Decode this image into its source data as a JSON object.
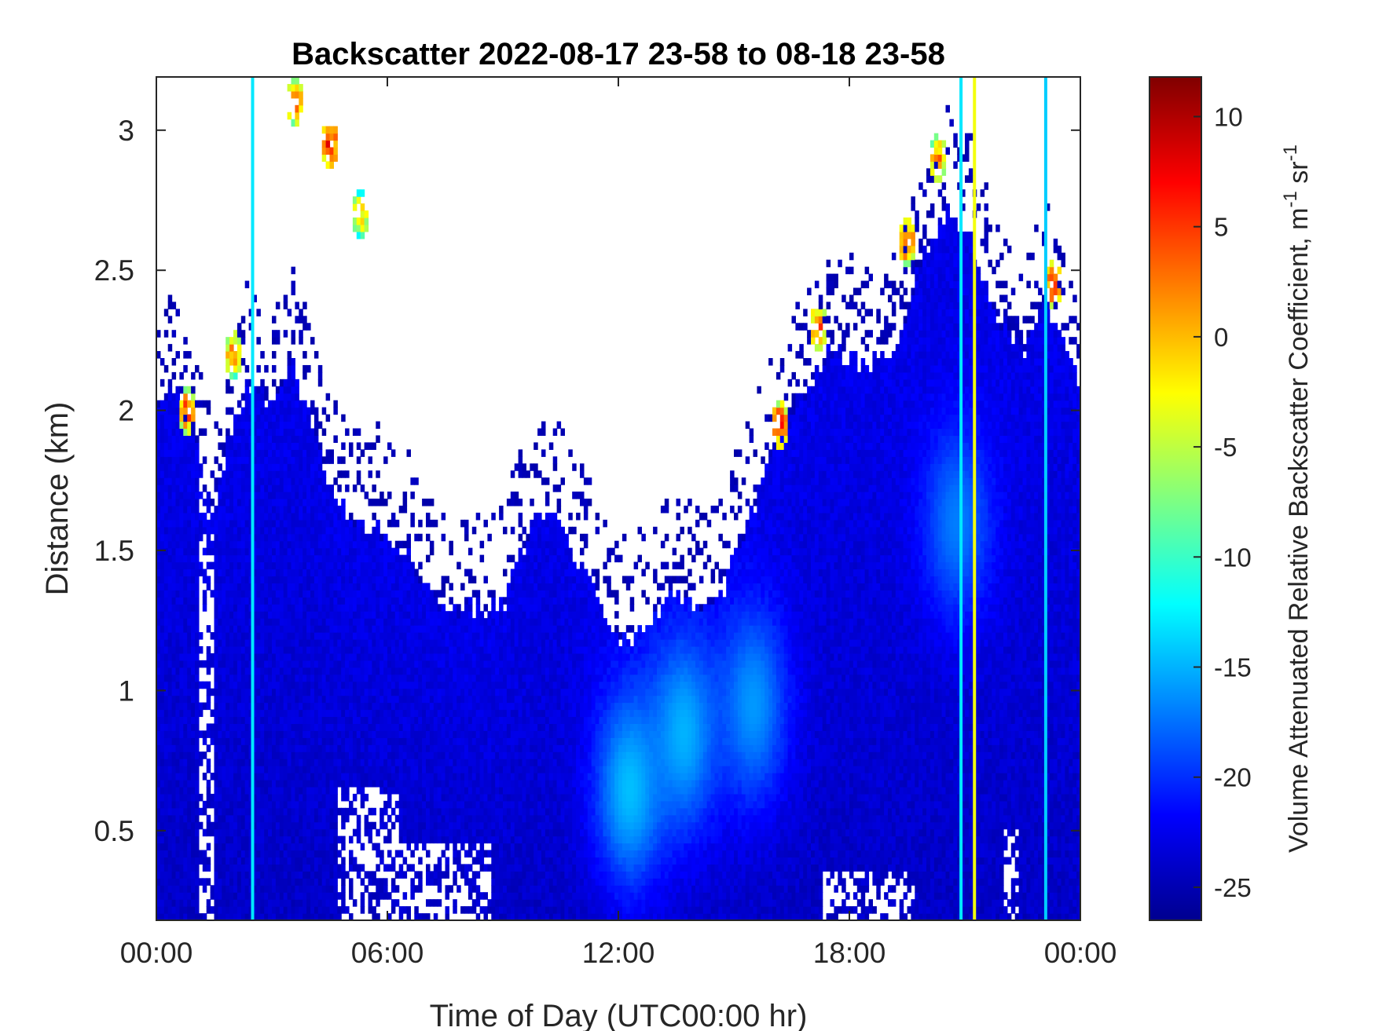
{
  "chart_data": {
    "type": "heatmap",
    "title": "Backscatter 2022-08-17 23-58 to 08-18 23-58",
    "xlabel": "Time of Day (UTC00:00 hr)",
    "ylabel": "Distance (km)",
    "xlim": [
      0,
      24
    ],
    "ylim": [
      0.18,
      3.19
    ],
    "x_ticks": [
      {
        "value": 0,
        "label": "00:00"
      },
      {
        "value": 6,
        "label": "06:00"
      },
      {
        "value": 12,
        "label": "12:00"
      },
      {
        "value": 18,
        "label": "18:00"
      },
      {
        "value": 24,
        "label": "00:00"
      }
    ],
    "y_ticks": [
      {
        "value": 0.5,
        "label": "0.5"
      },
      {
        "value": 1,
        "label": "1"
      },
      {
        "value": 1.5,
        "label": "1.5"
      },
      {
        "value": 2,
        "label": "2"
      },
      {
        "value": 2.5,
        "label": "2.5"
      },
      {
        "value": 3,
        "label": "3"
      }
    ],
    "colorbar": {
      "label": "Volume Attenuated Relative Backscatter Coefficient, m-1 sr-1",
      "label_text": "Volume Attenuated Relative Backscatter Coefficient, m",
      "label_sup1": "-1",
      "label_mid": " sr",
      "label_sup2": "-1",
      "range": [
        -26.5,
        11.8
      ],
      "colormap": "jet",
      "ticks": [
        {
          "value": 10,
          "label": "10"
        },
        {
          "value": 5,
          "label": "5"
        },
        {
          "value": 0,
          "label": "0"
        },
        {
          "value": -5,
          "label": "-5"
        },
        {
          "value": -10,
          "label": "-10"
        },
        {
          "value": -15,
          "label": "-15"
        },
        {
          "value": -20,
          "label": "-20"
        },
        {
          "value": -25,
          "label": "-25"
        }
      ]
    },
    "layer_top_km": [
      {
        "t": 0.0,
        "h": 2.0
      },
      {
        "t": 0.5,
        "h": 2.1
      },
      {
        "t": 1.0,
        "h": 1.9
      },
      {
        "t": 1.5,
        "h": 1.6
      },
      {
        "t": 2.0,
        "h": 2.0
      },
      {
        "t": 2.5,
        "h": 2.1
      },
      {
        "t": 3.0,
        "h": 2.0
      },
      {
        "t": 3.5,
        "h": 2.2
      },
      {
        "t": 4.0,
        "h": 1.95
      },
      {
        "t": 4.5,
        "h": 1.75
      },
      {
        "t": 5.0,
        "h": 1.6
      },
      {
        "t": 5.5,
        "h": 1.6
      },
      {
        "t": 6.0,
        "h": 1.55
      },
      {
        "t": 6.5,
        "h": 1.5
      },
      {
        "t": 7.0,
        "h": 1.35
      },
      {
        "t": 7.5,
        "h": 1.3
      },
      {
        "t": 8.0,
        "h": 1.3
      },
      {
        "t": 8.5,
        "h": 1.3
      },
      {
        "t": 9.0,
        "h": 1.3
      },
      {
        "t": 9.5,
        "h": 1.5
      },
      {
        "t": 10.0,
        "h": 1.65
      },
      {
        "t": 10.5,
        "h": 1.6
      },
      {
        "t": 11.0,
        "h": 1.45
      },
      {
        "t": 11.5,
        "h": 1.3
      },
      {
        "t": 12.0,
        "h": 1.2
      },
      {
        "t": 12.5,
        "h": 1.2
      },
      {
        "t": 13.0,
        "h": 1.3
      },
      {
        "t": 13.5,
        "h": 1.35
      },
      {
        "t": 14.0,
        "h": 1.3
      },
      {
        "t": 14.5,
        "h": 1.3
      },
      {
        "t": 15.0,
        "h": 1.45
      },
      {
        "t": 15.5,
        "h": 1.65
      },
      {
        "t": 16.0,
        "h": 1.85
      },
      {
        "t": 16.5,
        "h": 2.0
      },
      {
        "t": 17.0,
        "h": 2.1
      },
      {
        "t": 17.5,
        "h": 2.2
      },
      {
        "t": 18.0,
        "h": 2.2
      },
      {
        "t": 18.5,
        "h": 2.15
      },
      {
        "t": 19.0,
        "h": 2.2
      },
      {
        "t": 19.5,
        "h": 2.35
      },
      {
        "t": 20.0,
        "h": 2.6
      },
      {
        "t": 20.5,
        "h": 2.7
      },
      {
        "t": 21.0,
        "h": 2.65
      },
      {
        "t": 21.5,
        "h": 2.45
      },
      {
        "t": 22.0,
        "h": 2.3
      },
      {
        "t": 22.5,
        "h": 2.2
      },
      {
        "t": 23.0,
        "h": 2.4
      },
      {
        "t": 23.5,
        "h": 2.3
      },
      {
        "t": 24.0,
        "h": 2.1
      }
    ],
    "layer_bottom_gaps_km": [
      {
        "t": 1.3,
        "h": 3.19,
        "width": 0.35
      },
      {
        "t": 5.5,
        "h": 0.65,
        "width": 1.6
      },
      {
        "t": 7.5,
        "h": 0.45,
        "width": 2.5
      },
      {
        "t": 18.5,
        "h": 0.35,
        "width": 2.5
      },
      {
        "t": 22.2,
        "h": 0.5,
        "width": 0.4
      }
    ],
    "enhanced_cores": [
      {
        "t": 12.3,
        "h": 0.65,
        "value": -14.5
      },
      {
        "t": 13.7,
        "h": 0.85,
        "value": -15
      },
      {
        "t": 15.5,
        "h": 0.95,
        "value": -16
      },
      {
        "t": 20.8,
        "h": 1.6,
        "value": -17
      }
    ],
    "high_features": [
      {
        "t": 3.6,
        "h": 3.1,
        "value": 3
      },
      {
        "t": 4.5,
        "h": 2.95,
        "value": 6
      },
      {
        "t": 5.3,
        "h": 2.7,
        "value": -1
      },
      {
        "t": 0.8,
        "h": 2.0,
        "value": 4
      },
      {
        "t": 2.0,
        "h": 2.2,
        "value": 2
      },
      {
        "t": 16.2,
        "h": 1.95,
        "value": 5
      },
      {
        "t": 17.2,
        "h": 2.3,
        "value": 3
      },
      {
        "t": 19.5,
        "h": 2.6,
        "value": 4
      },
      {
        "t": 20.3,
        "h": 2.9,
        "value": 2
      },
      {
        "t": 23.3,
        "h": 2.45,
        "value": 5
      }
    ],
    "vertical_streaks": [
      {
        "t": 2.5,
        "value": -13
      },
      {
        "t": 20.9,
        "value": -13
      },
      {
        "t": 21.25,
        "value": -3
      },
      {
        "t": 23.1,
        "value": -14
      }
    ],
    "grid": false
  }
}
